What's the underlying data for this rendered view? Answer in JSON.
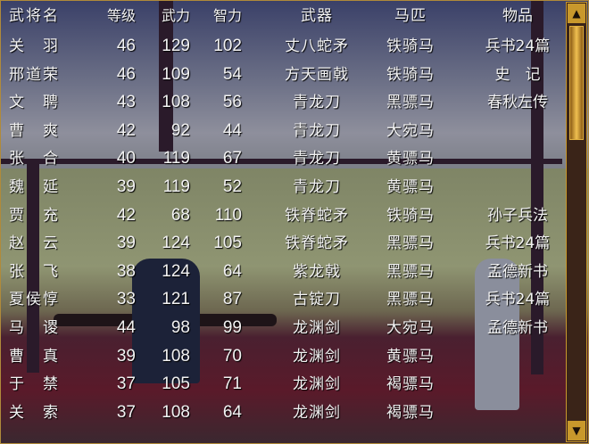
{
  "header": {
    "name": "武将名",
    "level": "等级",
    "strength": "武力",
    "intelligence": "智力",
    "weapon": "武器",
    "horse": "马匹",
    "item": "物品"
  },
  "rows": [
    {
      "name": "关　羽",
      "level": "46",
      "strength": "129",
      "intelligence": "102",
      "weapon": "丈八蛇矛",
      "horse": "铁骑马",
      "item": "兵书24篇"
    },
    {
      "name": "邢道荣",
      "level": "46",
      "strength": "109",
      "intelligence": "54",
      "weapon": "方天画戟",
      "horse": "铁骑马",
      "item": "史　记"
    },
    {
      "name": "文　聘",
      "level": "43",
      "strength": "108",
      "intelligence": "56",
      "weapon": "青龙刀",
      "horse": "黑骠马",
      "item": "春秋左传"
    },
    {
      "name": "曹　爽",
      "level": "42",
      "strength": "92",
      "intelligence": "44",
      "weapon": "青龙刀",
      "horse": "大宛马",
      "item": ""
    },
    {
      "name": "张　合",
      "level": "40",
      "strength": "119",
      "intelligence": "67",
      "weapon": "青龙刀",
      "horse": "黄骠马",
      "item": ""
    },
    {
      "name": "魏　延",
      "level": "39",
      "strength": "119",
      "intelligence": "52",
      "weapon": "青龙刀",
      "horse": "黄骠马",
      "item": ""
    },
    {
      "name": "贾　充",
      "level": "42",
      "strength": "68",
      "intelligence": "110",
      "weapon": "铁脊蛇矛",
      "horse": "铁骑马",
      "item": "孙子兵法"
    },
    {
      "name": "赵　云",
      "level": "39",
      "strength": "124",
      "intelligence": "105",
      "weapon": "铁脊蛇矛",
      "horse": "黑骠马",
      "item": "兵书24篇"
    },
    {
      "name": "张　飞",
      "level": "38",
      "strength": "124",
      "intelligence": "64",
      "weapon": "紫龙戟",
      "horse": "黑骠马",
      "item": "孟德新书"
    },
    {
      "name": "夏侯惇",
      "level": "33",
      "strength": "121",
      "intelligence": "87",
      "weapon": "古锭刀",
      "horse": "黑骠马",
      "item": "兵书24篇"
    },
    {
      "name": "马　谡",
      "level": "44",
      "strength": "98",
      "intelligence": "99",
      "weapon": "龙渊剑",
      "horse": "大宛马",
      "item": "孟德新书"
    },
    {
      "name": "曹　真",
      "level": "39",
      "strength": "108",
      "intelligence": "70",
      "weapon": "龙渊剑",
      "horse": "黄骠马",
      "item": ""
    },
    {
      "name": "于　禁",
      "level": "37",
      "strength": "105",
      "intelligence": "71",
      "weapon": "龙渊剑",
      "horse": "褐骠马",
      "item": ""
    },
    {
      "name": "关　索",
      "level": "37",
      "strength": "108",
      "intelligence": "64",
      "weapon": "龙渊剑",
      "horse": "褐骠马",
      "item": ""
    }
  ],
  "scrollbar": {
    "up_icon": "▲",
    "down_icon": "▼",
    "position": 0
  }
}
